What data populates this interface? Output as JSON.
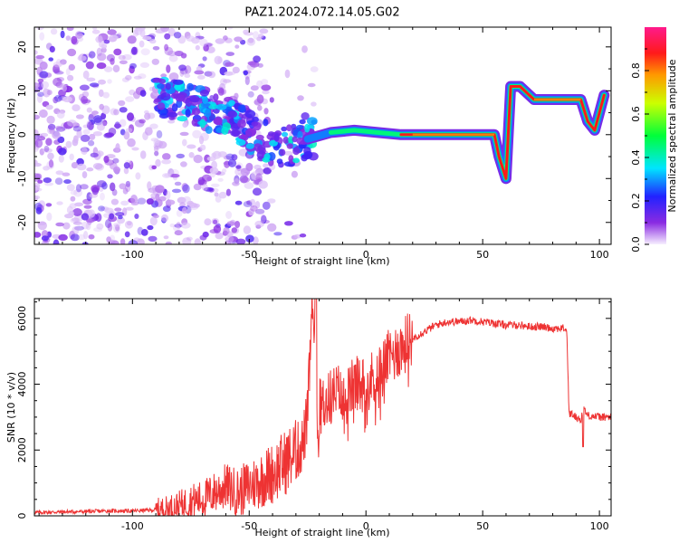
{
  "title": "PAZ1.2024.072.14.05.G02",
  "chart_data": [
    {
      "type": "heatmap",
      "xlabel": "Height of straight line (km)",
      "ylabel": "Frequency (Hz)",
      "xlim": [
        -142,
        105
      ],
      "ylim": [
        -25,
        24.5
      ],
      "xticks": [
        -100,
        -50,
        0,
        50,
        100
      ],
      "yticks": [
        -20,
        -10,
        0,
        10,
        20
      ],
      "colorbar": {
        "label": "Normalized spectral amplitude",
        "range": [
          0,
          1
        ],
        "ticks": [
          0.0,
          0.2,
          0.4,
          0.6,
          0.8
        ],
        "colormap": "rainbow: white/lavender - violet - blue - cyan - green - yellow - red - pink"
      },
      "ridge": [
        {
          "x": -85,
          "y": 8
        },
        {
          "x": -75,
          "y": 7
        },
        {
          "x": -65,
          "y": 5
        },
        {
          "x": -55,
          "y": 3
        },
        {
          "x": -45,
          "y": -1
        },
        {
          "x": -35,
          "y": -3
        },
        {
          "x": -25,
          "y": -1
        },
        {
          "x": -15,
          "y": 0.5
        },
        {
          "x": -5,
          "y": 1
        },
        {
          "x": 5,
          "y": 0.5
        },
        {
          "x": 15,
          "y": 0
        },
        {
          "x": 30,
          "y": 0
        },
        {
          "x": 45,
          "y": 0
        },
        {
          "x": 55,
          "y": 0
        },
        {
          "x": 57,
          "y": -5
        },
        {
          "x": 60,
          "y": -10
        },
        {
          "x": 62,
          "y": 11
        },
        {
          "x": 66,
          "y": 11
        },
        {
          "x": 72,
          "y": 8
        },
        {
          "x": 85,
          "y": 8
        },
        {
          "x": 92,
          "y": 8
        },
        {
          "x": 95,
          "y": 3
        },
        {
          "x": 98,
          "y": 1
        },
        {
          "x": 102,
          "y": 9
        }
      ]
    },
    {
      "type": "line",
      "xlabel": "Height of straight line (km)",
      "ylabel": "SNR (10 * v/v)",
      "xlim": [
        -142,
        105
      ],
      "ylim": [
        0,
        6600
      ],
      "xticks": [
        -100,
        -50,
        0,
        50,
        100
      ],
      "yticks": [
        0,
        2000,
        4000,
        6000
      ],
      "series": [
        {
          "color": "#ee3333",
          "x": [
            -142,
            -130,
            -120,
            -110,
            -100,
            -90,
            -85,
            -80,
            -75,
            -70,
            -65,
            -60,
            -55,
            -50,
            -45,
            -40,
            -35,
            -30,
            -27,
            -25,
            -23,
            -21,
            -20,
            -18,
            -15,
            -12,
            -10,
            -5,
            0,
            5,
            10,
            15,
            20,
            25,
            30,
            35,
            40,
            45,
            50,
            55,
            60,
            65,
            70,
            75,
            80,
            85,
            86,
            87,
            88,
            90,
            92,
            93,
            95,
            100,
            105
          ],
          "y": [
            100,
            120,
            130,
            150,
            150,
            180,
            220,
            300,
            450,
            500,
            700,
            900,
            700,
            900,
            1100,
            1300,
            1600,
            1900,
            2200,
            3000,
            6500,
            2800,
            3300,
            3400,
            3600,
            3800,
            3400,
            4000,
            4000,
            4300,
            4800,
            5100,
            5400,
            5600,
            5800,
            5900,
            5900,
            5950,
            5900,
            5850,
            5800,
            5800,
            5750,
            5750,
            5700,
            5700,
            5650,
            3100,
            3100,
            3000,
            2900,
            3300,
            3050,
            3000,
            3000
          ]
        }
      ]
    }
  ]
}
